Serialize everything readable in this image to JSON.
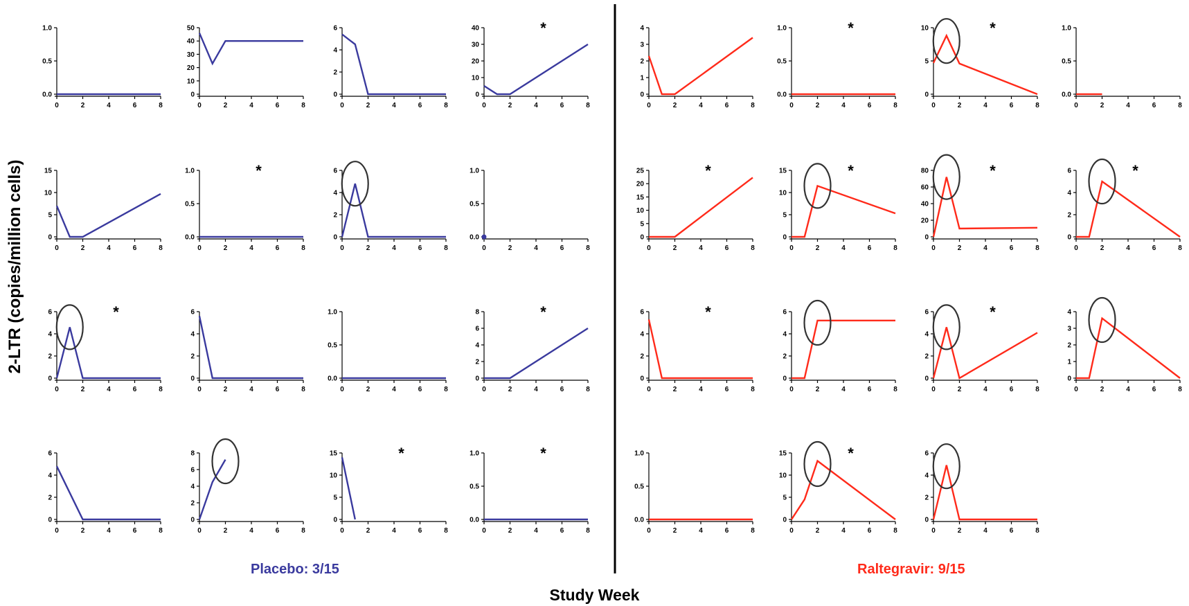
{
  "figure": {
    "ylabel": "2-LTR (copies/million cells)",
    "xlabel": "Study Week",
    "placebo_label": "Placebo: 3/15",
    "raltegravir_label": "Raltegravir: 9/15",
    "colors": {
      "placebo": "#3a3a9e",
      "raltegravir": "#ff2a1a",
      "axis": "#000000",
      "circle": "#333333"
    }
  },
  "chart_data": [
    {
      "type": "line",
      "group": "Placebo",
      "yticks": [
        "0.0",
        "0.5",
        "1.0"
      ],
      "ylim": [
        0,
        1
      ],
      "xticks": [
        0,
        2,
        4,
        6,
        8
      ],
      "x": [
        0,
        8
      ],
      "y": [
        0,
        0
      ],
      "star": false,
      "circle_x": null,
      "circle_y": null
    },
    {
      "type": "line",
      "group": "Placebo",
      "yticks": [
        "0",
        "10",
        "20",
        "30",
        "40",
        "50"
      ],
      "ylim": [
        0,
        50
      ],
      "xticks": [
        0,
        2,
        4,
        6,
        8
      ],
      "x": [
        0,
        1,
        2,
        8
      ],
      "y": [
        46,
        23,
        40,
        40
      ],
      "star": false,
      "circle_x": null,
      "circle_y": null
    },
    {
      "type": "line",
      "group": "Placebo",
      "yticks": [
        "0",
        "2",
        "4",
        "6"
      ],
      "ylim": [
        0,
        6
      ],
      "xticks": [
        0,
        2,
        4,
        6,
        8
      ],
      "x": [
        0,
        1,
        2,
        8
      ],
      "y": [
        5.4,
        4.5,
        0,
        0
      ],
      "star": false,
      "circle_x": null,
      "circle_y": null
    },
    {
      "type": "line",
      "group": "Placebo",
      "yticks": [
        "0",
        "10",
        "20",
        "30",
        "40"
      ],
      "ylim": [
        0,
        40
      ],
      "xticks": [
        0,
        2,
        4,
        6,
        8
      ],
      "x": [
        0,
        1,
        2,
        8
      ],
      "y": [
        5,
        0,
        0,
        30
      ],
      "star": true,
      "circle_x": null,
      "circle_y": null
    },
    {
      "type": "line",
      "group": "Placebo",
      "yticks": [
        "0",
        "5",
        "10",
        "15"
      ],
      "ylim": [
        0,
        15
      ],
      "xticks": [
        0,
        2,
        4,
        6,
        8
      ],
      "x": [
        0,
        1,
        2,
        8
      ],
      "y": [
        7,
        0,
        0,
        9.7
      ],
      "star": false,
      "circle_x": null,
      "circle_y": null
    },
    {
      "type": "line",
      "group": "Placebo",
      "yticks": [
        "0.0",
        "0.5",
        "1.0"
      ],
      "ylim": [
        0,
        1
      ],
      "xticks": [
        0,
        2,
        4,
        6,
        8
      ],
      "x": [
        0,
        8
      ],
      "y": [
        0,
        0
      ],
      "star": true,
      "circle_x": null,
      "circle_y": null
    },
    {
      "type": "line",
      "group": "Placebo",
      "yticks": [
        "0",
        "2",
        "4",
        "6"
      ],
      "ylim": [
        0,
        6
      ],
      "xticks": [
        0,
        2,
        4,
        6,
        8
      ],
      "x": [
        0,
        1,
        2,
        8
      ],
      "y": [
        0,
        4.8,
        0,
        0
      ],
      "star": false,
      "circle_x": 1,
      "circle_y": 4.8
    },
    {
      "type": "scatter",
      "group": "Placebo",
      "yticks": [
        "0.0",
        "0.5",
        "1.0"
      ],
      "ylim": [
        0,
        1
      ],
      "xticks": [
        0,
        2,
        4,
        6,
        8
      ],
      "x": [
        0
      ],
      "y": [
        0
      ],
      "star": false,
      "circle_x": null,
      "circle_y": null
    },
    {
      "type": "line",
      "group": "Placebo",
      "yticks": [
        "0",
        "2",
        "4",
        "6"
      ],
      "ylim": [
        0,
        6
      ],
      "xticks": [
        0,
        2,
        4,
        6,
        8
      ],
      "x": [
        0,
        1,
        2,
        8
      ],
      "y": [
        0,
        4.6,
        0,
        0
      ],
      "star": true,
      "circle_x": 1,
      "circle_y": 4.6
    },
    {
      "type": "line",
      "group": "Placebo",
      "yticks": [
        "0",
        "2",
        "4",
        "6"
      ],
      "ylim": [
        0,
        6
      ],
      "xticks": [
        0,
        2,
        4,
        6,
        8
      ],
      "x": [
        0,
        1,
        8
      ],
      "y": [
        5.6,
        0,
        0
      ],
      "star": false,
      "circle_x": null,
      "circle_y": null
    },
    {
      "type": "line",
      "group": "Placebo",
      "yticks": [
        "0.0",
        "0.5",
        "1.0"
      ],
      "ylim": [
        0,
        1
      ],
      "xticks": [
        0,
        2,
        4,
        6,
        8
      ],
      "x": [
        0,
        8
      ],
      "y": [
        0,
        0
      ],
      "star": false,
      "circle_x": null,
      "circle_y": null
    },
    {
      "type": "line",
      "group": "Placebo",
      "yticks": [
        "0",
        "2",
        "4",
        "6",
        "8"
      ],
      "ylim": [
        0,
        8
      ],
      "xticks": [
        0,
        2,
        4,
        6,
        8
      ],
      "x": [
        0,
        2,
        8
      ],
      "y": [
        0,
        0,
        6
      ],
      "star": true,
      "circle_x": null,
      "circle_y": null
    },
    {
      "type": "line",
      "group": "Placebo",
      "yticks": [
        "0",
        "2",
        "4",
        "6"
      ],
      "ylim": [
        0,
        6
      ],
      "xticks": [
        0,
        2,
        4,
        6,
        8
      ],
      "x": [
        0,
        2,
        8
      ],
      "y": [
        4.8,
        0,
        0
      ],
      "star": false,
      "circle_x": null,
      "circle_y": null
    },
    {
      "type": "line",
      "group": "Placebo",
      "yticks": [
        "0",
        "2",
        "4",
        "6",
        "8"
      ],
      "ylim": [
        0,
        8
      ],
      "xticks": [
        0,
        2,
        4,
        6,
        8
      ],
      "x": [
        0,
        1,
        2
      ],
      "y": [
        0,
        4.5,
        7.2
      ],
      "star": false,
      "circle_x": 2,
      "circle_y": 7
    },
    {
      "type": "line",
      "group": "Placebo",
      "yticks": [
        "0",
        "5",
        "10",
        "15"
      ],
      "ylim": [
        0,
        15
      ],
      "xticks": [
        0,
        2,
        4,
        6,
        8
      ],
      "x": [
        0,
        1
      ],
      "y": [
        14,
        0
      ],
      "star": true,
      "circle_x": null,
      "circle_y": null
    },
    {
      "type": "line",
      "group": "Placebo",
      "yticks": [
        "0.0",
        "0.5",
        "1.0"
      ],
      "ylim": [
        0,
        1
      ],
      "xticks": [
        0,
        2,
        4,
        6,
        8
      ],
      "x": [
        0,
        8
      ],
      "y": [
        0,
        0
      ],
      "star": true,
      "circle_x": null,
      "circle_y": null
    },
    {
      "type": "line",
      "group": "Raltegravir",
      "yticks": [
        "0",
        "1",
        "2",
        "3",
        "4"
      ],
      "ylim": [
        0,
        4
      ],
      "xticks": [
        0,
        2,
        4,
        6,
        8
      ],
      "x": [
        0,
        1,
        2,
        8
      ],
      "y": [
        2.3,
        0,
        0,
        3.4
      ],
      "star": false,
      "circle_x": null,
      "circle_y": null
    },
    {
      "type": "line",
      "group": "Raltegravir",
      "yticks": [
        "0.0",
        "0.5",
        "1.0"
      ],
      "ylim": [
        0,
        1
      ],
      "xticks": [
        0,
        2,
        4,
        6,
        8
      ],
      "x": [
        0,
        8
      ],
      "y": [
        0,
        0
      ],
      "star": true,
      "circle_x": null,
      "circle_y": null
    },
    {
      "type": "line",
      "group": "Raltegravir",
      "yticks": [
        "0",
        "5",
        "10"
      ],
      "ylim": [
        0,
        10
      ],
      "xticks": [
        0,
        2,
        4,
        6,
        8
      ],
      "x": [
        0,
        1,
        2,
        8
      ],
      "y": [
        4.7,
        8.8,
        4.6,
        0
      ],
      "star": true,
      "circle_x": 1,
      "circle_y": 8
    },
    {
      "type": "line",
      "group": "Raltegravir",
      "yticks": [
        "0.0",
        "0.5",
        "1.0"
      ],
      "ylim": [
        0,
        1
      ],
      "xticks": [
        0,
        2,
        4,
        6,
        8
      ],
      "x": [
        0,
        2
      ],
      "y": [
        0,
        0
      ],
      "star": false,
      "circle_x": null,
      "circle_y": null
    },
    {
      "type": "line",
      "group": "Raltegravir",
      "yticks": [
        "0",
        "5",
        "10",
        "15",
        "20",
        "25"
      ],
      "ylim": [
        0,
        25
      ],
      "xticks": [
        0,
        2,
        4,
        6,
        8
      ],
      "x": [
        0,
        2,
        8
      ],
      "y": [
        0,
        0,
        22.3
      ],
      "star": true,
      "circle_x": null,
      "circle_y": null
    },
    {
      "type": "line",
      "group": "Raltegravir",
      "yticks": [
        "0",
        "5",
        "10",
        "15"
      ],
      "ylim": [
        0,
        15
      ],
      "xticks": [
        0,
        2,
        4,
        6,
        8
      ],
      "x": [
        0,
        1,
        2,
        8
      ],
      "y": [
        0,
        0,
        11.5,
        5.3
      ],
      "star": true,
      "circle_x": 2,
      "circle_y": 11.5
    },
    {
      "type": "line",
      "group": "Raltegravir",
      "yticks": [
        "0",
        "20",
        "40",
        "60",
        "80"
      ],
      "ylim": [
        0,
        80
      ],
      "xticks": [
        0,
        2,
        4,
        6,
        8
      ],
      "x": [
        0,
        1,
        2,
        8
      ],
      "y": [
        0,
        72,
        10,
        11
      ],
      "star": true,
      "circle_x": 1,
      "circle_y": 72
    },
    {
      "type": "line",
      "group": "Raltegravir",
      "yticks": [
        "0",
        "2",
        "4",
        "6"
      ],
      "ylim": [
        0,
        6
      ],
      "xticks": [
        0,
        2,
        4,
        6,
        8
      ],
      "x": [
        0,
        1,
        2,
        8
      ],
      "y": [
        0,
        0,
        5,
        0
      ],
      "star": true,
      "circle_x": 2,
      "circle_y": 5
    },
    {
      "type": "line",
      "group": "Raltegravir",
      "yticks": [
        "0",
        "2",
        "4",
        "6"
      ],
      "ylim": [
        0,
        6
      ],
      "xticks": [
        0,
        2,
        4,
        6,
        8
      ],
      "x": [
        0,
        1,
        8
      ],
      "y": [
        5.3,
        0,
        0
      ],
      "star": true,
      "circle_x": null,
      "circle_y": null
    },
    {
      "type": "line",
      "group": "Raltegravir",
      "yticks": [
        "0",
        "2",
        "4",
        "6"
      ],
      "ylim": [
        0,
        6
      ],
      "xticks": [
        0,
        2,
        4,
        6,
        8
      ],
      "x": [
        0,
        1,
        2,
        8
      ],
      "y": [
        0,
        0,
        5.2,
        5.2
      ],
      "star": false,
      "circle_x": 2,
      "circle_y": 5
    },
    {
      "type": "line",
      "group": "Raltegravir",
      "yticks": [
        "0",
        "2",
        "4",
        "6"
      ],
      "ylim": [
        0,
        6
      ],
      "xticks": [
        0,
        2,
        4,
        6,
        8
      ],
      "x": [
        0,
        1,
        2,
        8
      ],
      "y": [
        0,
        4.6,
        0,
        4.1
      ],
      "star": true,
      "circle_x": 1,
      "circle_y": 4.6
    },
    {
      "type": "line",
      "group": "Raltegravir",
      "yticks": [
        "0",
        "1",
        "2",
        "3",
        "4"
      ],
      "ylim": [
        0,
        4
      ],
      "xticks": [
        0,
        2,
        4,
        6,
        8
      ],
      "x": [
        0,
        1,
        2,
        8
      ],
      "y": [
        0,
        0,
        3.6,
        0
      ],
      "star": false,
      "circle_x": 2,
      "circle_y": 3.5
    },
    {
      "type": "line",
      "group": "Raltegravir",
      "yticks": [
        "0.0",
        "0.5",
        "1.0"
      ],
      "ylim": [
        0,
        1
      ],
      "xticks": [
        0,
        2,
        4,
        6,
        8
      ],
      "x": [
        0,
        8
      ],
      "y": [
        0,
        0
      ],
      "star": false,
      "circle_x": null,
      "circle_y": null
    },
    {
      "type": "line",
      "group": "Raltegravir",
      "yticks": [
        "0",
        "5",
        "10",
        "15"
      ],
      "ylim": [
        0,
        15
      ],
      "xticks": [
        0,
        2,
        4,
        6,
        8
      ],
      "x": [
        0,
        1,
        2,
        8
      ],
      "y": [
        0,
        4.5,
        13.2,
        0
      ],
      "star": true,
      "circle_x": 2,
      "circle_y": 12.5
    },
    {
      "type": "line",
      "group": "Raltegravir",
      "yticks": [
        "0",
        "2",
        "4",
        "6"
      ],
      "ylim": [
        0,
        6
      ],
      "xticks": [
        0,
        2,
        4,
        6,
        8
      ],
      "x": [
        0,
        1,
        2,
        8
      ],
      "y": [
        0,
        4.9,
        0,
        0
      ],
      "star": false,
      "circle_x": 1,
      "circle_y": 4.8
    }
  ]
}
